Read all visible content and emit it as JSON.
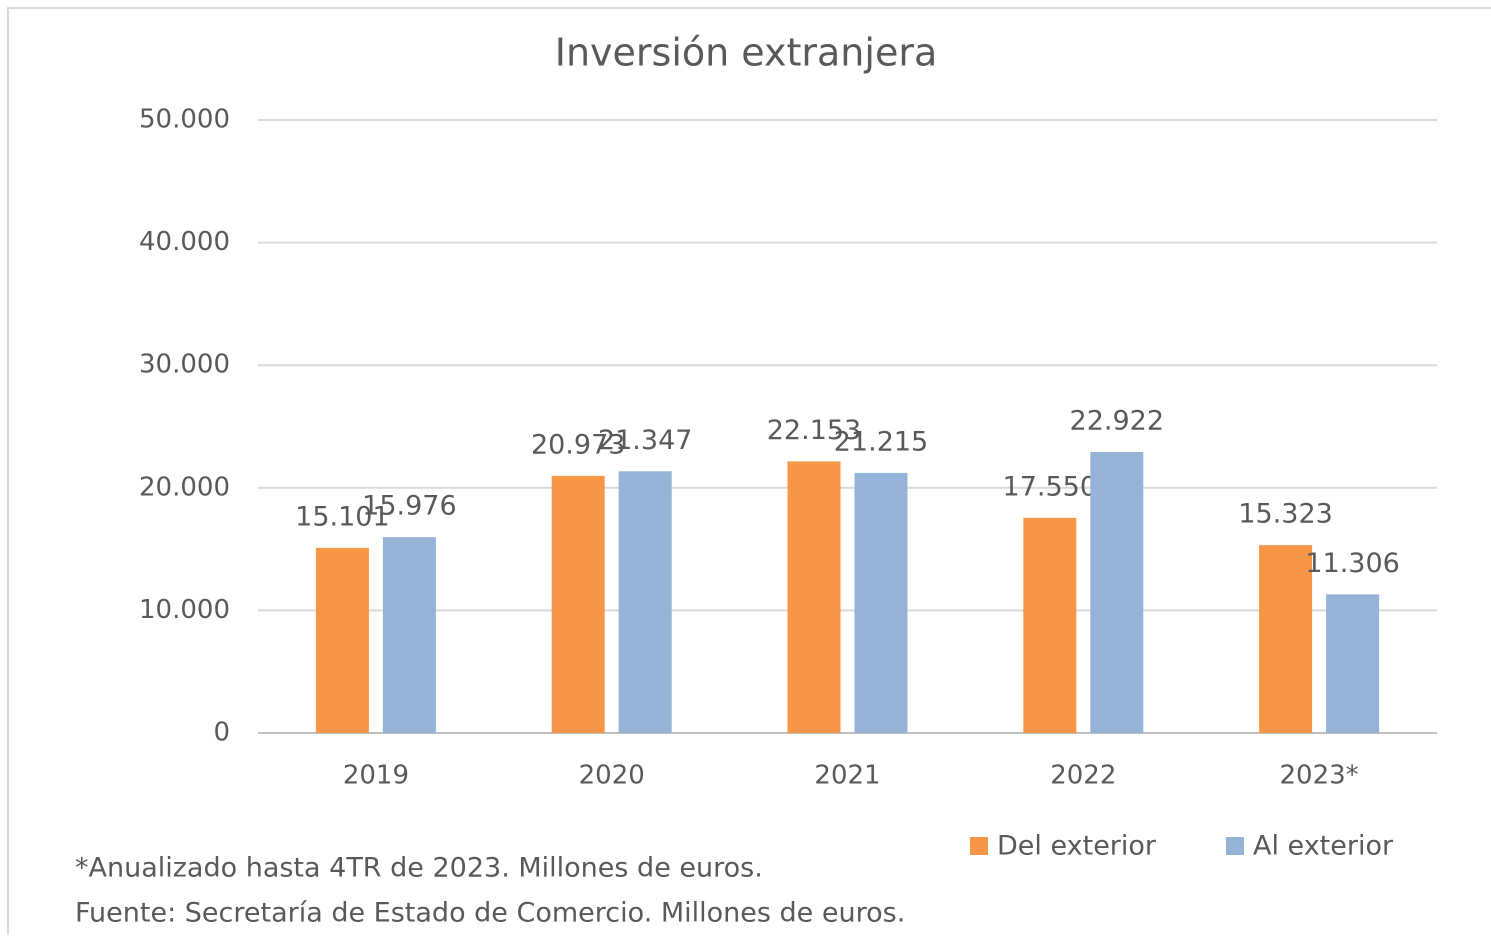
{
  "chart_data": {
    "type": "bar",
    "title": "Inversión extranjera",
    "categories": [
      "2019",
      "2020",
      "2021",
      "2022",
      "2023*"
    ],
    "series": [
      {
        "name": "Del exterior",
        "color": "#f79646",
        "values": [
          15101,
          20973,
          22153,
          17550,
          15323
        ],
        "value_labels": [
          "15.101",
          "20.973",
          "22.153",
          "17.550",
          "15.323"
        ]
      },
      {
        "name": "Al exterior",
        "color": "#95b3d7",
        "values": [
          15976,
          21347,
          21215,
          22922,
          11306
        ],
        "value_labels": [
          "15.976",
          "21.347",
          "21.215",
          "22.922",
          "11.306"
        ]
      }
    ],
    "ylim": [
      0,
      50000
    ],
    "yticks": [
      0,
      {
        "value": 10000,
        "label": "10.000"
      },
      {
        "value": 20000,
        "label": "20.000"
      },
      {
        "value": 30000,
        "label": "30.000"
      },
      {
        "value": 40000,
        "label": "40.000"
      },
      {
        "value": 50000,
        "label": "50.000"
      }
    ],
    "grid": true,
    "legend": "bottom-right",
    "annotations": [
      "*Anualizado hasta 4TR de 2023. Millones de euros.",
      "Fuente: Secretaría de Estado de Comercio. Millones de euros."
    ]
  }
}
